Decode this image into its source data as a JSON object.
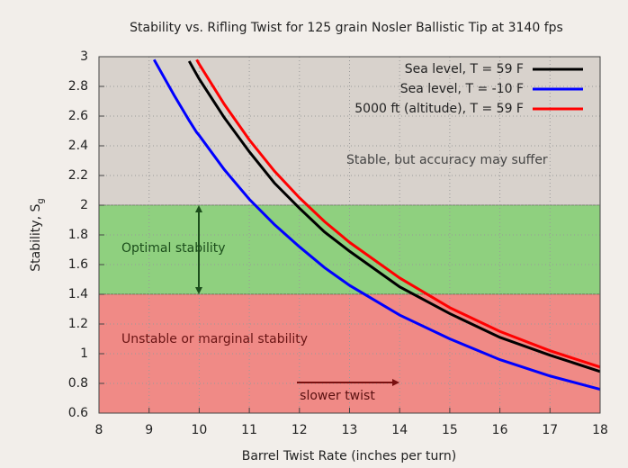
{
  "chart_data": {
    "type": "line",
    "title": "Stability vs. Rifling Twist for 125 grain Nosler Ballistic Tip at 3140 fps",
    "x_label": "Barrel Twist Rate (inches per turn)",
    "y_label": "Stability, S",
    "y_label_subscript": "g",
    "x": [
      9.1,
      9.5,
      9.8,
      9.95,
      10,
      10.5,
      11,
      11.5,
      12,
      12.5,
      13,
      14,
      15,
      16,
      17,
      18
    ],
    "series": [
      {
        "name": "Sea level, T = 59 F",
        "color": "#000000",
        "values": [
          null,
          null,
          2.97,
          2.88,
          2.85,
          2.59,
          2.36,
          2.15,
          1.98,
          1.82,
          1.69,
          1.45,
          1.27,
          1.11,
          0.99,
          0.88
        ]
      },
      {
        "name": "Sea level, T = -10 F",
        "color": "#0000ff",
        "values": [
          2.98,
          2.74,
          2.57,
          2.49,
          2.47,
          2.24,
          2.04,
          1.87,
          1.72,
          1.58,
          1.46,
          1.26,
          1.1,
          0.96,
          0.85,
          0.76
        ]
      },
      {
        "name": "5000 ft (altitude), T = 59 F",
        "color": "#ff0000",
        "values": [
          null,
          null,
          null,
          2.98,
          2.95,
          2.68,
          2.44,
          2.23,
          2.05,
          1.89,
          1.75,
          1.51,
          1.31,
          1.15,
          1.02,
          0.91
        ]
      }
    ],
    "regions": [
      {
        "from": 2,
        "to": 3,
        "color": "#d8d2cc",
        "label": "Stable, but accuracy may suffer"
      },
      {
        "from": 1.4,
        "to": 2,
        "color": "#8fd07f",
        "label": "Optimal stability"
      },
      {
        "from": 0.6,
        "to": 1.4,
        "color": "#f08a86",
        "label": "Unstable or marginal stability"
      }
    ],
    "annotation": "slower twist",
    "xlim": [
      8,
      18
    ],
    "ylim": [
      0.6,
      3
    ],
    "xticks": [
      8,
      9,
      10,
      11,
      12,
      13,
      14,
      15,
      16,
      17,
      18
    ],
    "yticks": [
      0.6,
      0.8,
      1,
      1.2,
      1.4,
      1.6,
      1.8,
      2,
      2.2,
      2.4,
      2.6,
      2.8,
      3
    ],
    "grid": true,
    "legend": "top-right"
  }
}
